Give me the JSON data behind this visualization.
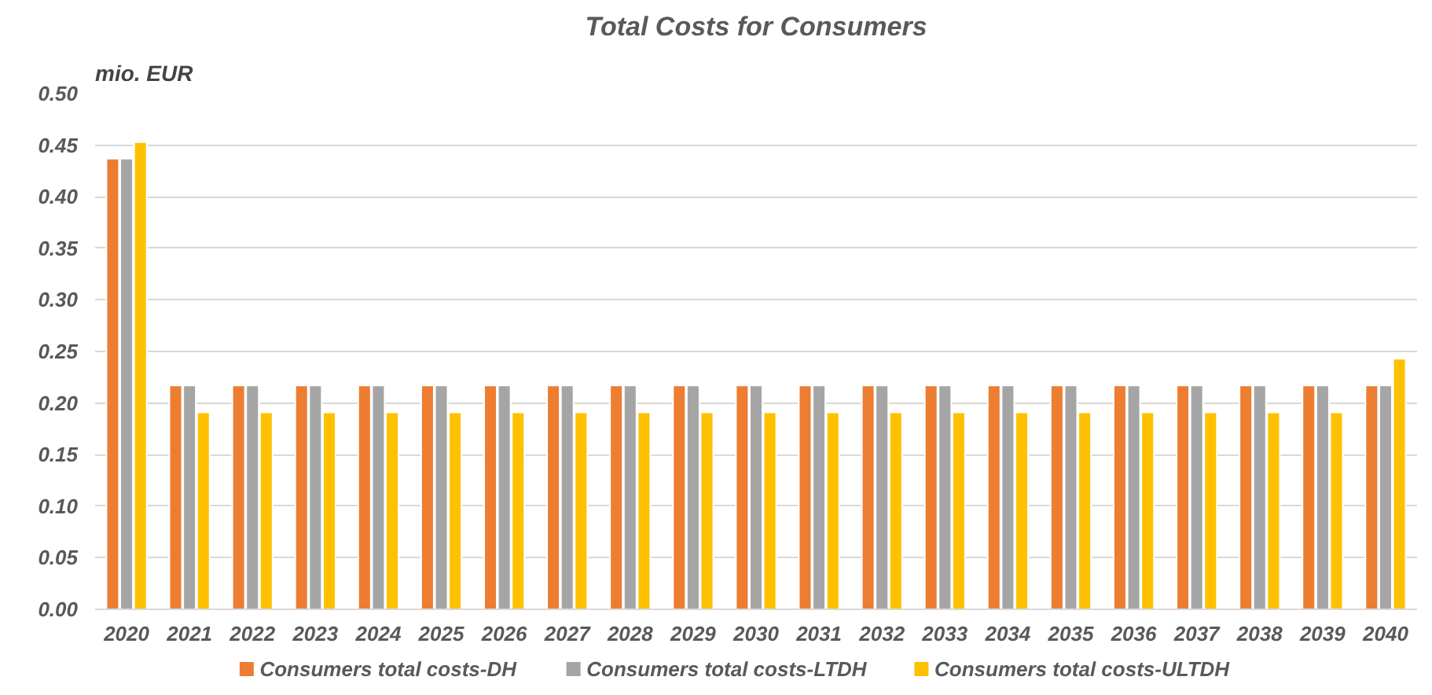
{
  "chart_data": {
    "type": "bar",
    "title": "Total Costs for Consumers",
    "ylabel": "mio. EUR",
    "categories": [
      "2020",
      "2021",
      "2022",
      "2023",
      "2024",
      "2025",
      "2026",
      "2027",
      "2028",
      "2029",
      "2030",
      "2031",
      "2032",
      "2033",
      "2034",
      "2035",
      "2036",
      "2037",
      "2038",
      "2039",
      "2040"
    ],
    "series": [
      {
        "name": "Consumers total costs-DH",
        "color": "#ed7d31",
        "values": [
          0.437,
          0.217,
          0.217,
          0.217,
          0.217,
          0.217,
          0.217,
          0.217,
          0.217,
          0.217,
          0.217,
          0.217,
          0.217,
          0.217,
          0.217,
          0.217,
          0.217,
          0.217,
          0.217,
          0.217,
          0.217
        ]
      },
      {
        "name": "Consumers total costs-LTDH",
        "color": "#a5a5a5",
        "values": [
          0.437,
          0.217,
          0.217,
          0.217,
          0.217,
          0.217,
          0.217,
          0.217,
          0.217,
          0.217,
          0.217,
          0.217,
          0.217,
          0.217,
          0.217,
          0.217,
          0.217,
          0.217,
          0.217,
          0.217,
          0.217
        ]
      },
      {
        "name": "Consumers total costs-ULTDH",
        "color": "#ffc000",
        "values": [
          0.453,
          0.191,
          0.191,
          0.191,
          0.191,
          0.191,
          0.191,
          0.191,
          0.191,
          0.191,
          0.191,
          0.191,
          0.191,
          0.191,
          0.191,
          0.191,
          0.191,
          0.191,
          0.191,
          0.191,
          0.243
        ]
      }
    ],
    "ylim": [
      0,
      0.5
    ],
    "yticks": [
      {
        "value": 0,
        "label": "0.00"
      },
      {
        "value": 0.05,
        "label": "0.05"
      },
      {
        "value": 0.1,
        "label": "0.10"
      },
      {
        "value": 0.15,
        "label": "0.15"
      },
      {
        "value": 0.2,
        "label": "0.20"
      },
      {
        "value": 0.25,
        "label": "0.25"
      },
      {
        "value": 0.3,
        "label": "0.30"
      },
      {
        "value": 0.35,
        "label": "0.35"
      },
      {
        "value": 0.4,
        "label": "0.40"
      },
      {
        "value": 0.45,
        "label": "0.45"
      },
      {
        "value": 0.5,
        "label": "0.50"
      }
    ],
    "grid": "y",
    "legend": "bottom"
  }
}
